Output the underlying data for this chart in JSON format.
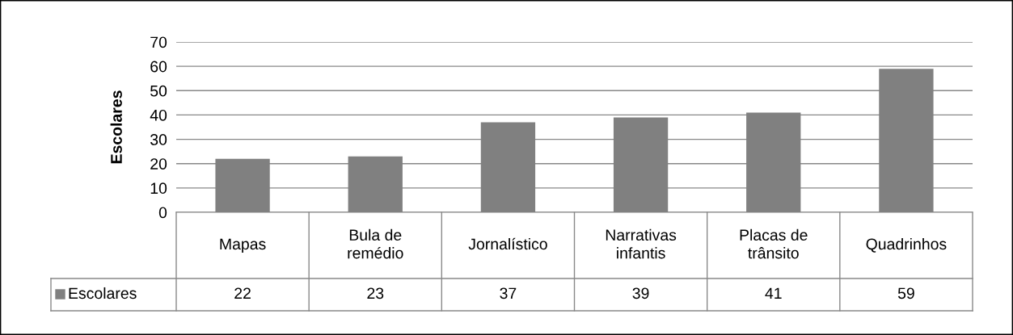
{
  "chart_data": {
    "type": "bar",
    "ylabel": "Escolares",
    "categories": [
      "Mapas",
      "Bula de remédio",
      "Jornalístico",
      "Narrativas infantis",
      "Placas de trânsito",
      "Quadrinhos"
    ],
    "series": [
      {
        "name": "Escolares",
        "color": "#808080",
        "values": [
          22,
          23,
          37,
          39,
          41,
          59
        ]
      }
    ],
    "ylim": [
      0,
      70
    ],
    "yticks": [
      0,
      10,
      20,
      30,
      40,
      50,
      60,
      70
    ],
    "grid": "y",
    "data_labels": true,
    "legend": "bottom left",
    "tick_labels": "y"
  }
}
